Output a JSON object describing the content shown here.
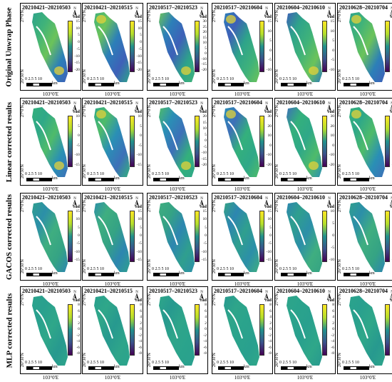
{
  "rows": [
    {
      "label": "Original Unwrap Phase",
      "palette": "orig"
    },
    {
      "label": "Linear corrected results",
      "palette": "lin"
    },
    {
      "label": "GACOS corrected results",
      "palette": "gacos"
    },
    {
      "label": "MLP corrected results",
      "palette": "mlp"
    }
  ],
  "columns": [
    "20210421–20210503",
    "20210421–20210515",
    "20210517–20210523",
    "20210517–20210604",
    "20210604–20210610",
    "20210628–20210704"
  ],
  "lat_top": "27°0'N",
  "lat_bottom": "26°30'N",
  "lon_label": "103°0'E",
  "scale_numbers": "0 2.5 5   10",
  "scale_unit": "km",
  "unit": "rad",
  "north_symbol": "N",
  "colorbar_ticks": [
    [
      [
        "15",
        "10",
        "5",
        "0",
        "-5",
        "-10",
        "-15",
        "-20"
      ],
      [
        "15",
        "10",
        "5",
        "0",
        "-5",
        "-10",
        "-15",
        "-20"
      ],
      [
        "30",
        "25",
        "20",
        "15",
        "10",
        "5",
        "0",
        "-10",
        "-15",
        "-20"
      ],
      [
        "15",
        "10",
        "5",
        "0",
        "-5",
        "-10"
      ],
      [
        "15",
        "10",
        "5",
        "0",
        "-5",
        "-10"
      ],
      [
        "15",
        "10",
        "5",
        "0",
        "-5",
        "-10"
      ]
    ],
    [
      [
        "10",
        "5",
        "0",
        "-5",
        "-10",
        "-15"
      ],
      [
        "10",
        "5",
        "0",
        "-5",
        "-10",
        "-15"
      ],
      [
        "20",
        "15",
        "10",
        "5",
        "0",
        "-5",
        "-10",
        "-15",
        "-20"
      ],
      [
        "30",
        "20",
        "10",
        "0",
        "-10",
        "-20"
      ],
      [
        "30",
        "20",
        "10",
        "0",
        "-10",
        "-20"
      ],
      [
        "10",
        "5",
        "0",
        "-5",
        "-10"
      ]
    ],
    [
      [
        "15",
        "10",
        "5",
        "0",
        "-5",
        "-10",
        "-15"
      ],
      [
        "15",
        "10",
        "5",
        "0",
        "-5",
        "-10",
        "-15"
      ],
      [
        "15",
        "10",
        "5",
        "0",
        "-5",
        "-10",
        "-15"
      ],
      [
        "15",
        "10",
        "5",
        "0",
        "-5",
        "-10",
        "-15"
      ],
      [
        "10",
        "5",
        "0",
        "-5",
        "-10"
      ],
      [
        "10",
        "5",
        "0",
        "-5",
        "-10"
      ]
    ],
    [
      [
        "8",
        "6",
        "4",
        "2",
        "0",
        "-2",
        "-4",
        "-6",
        "-8"
      ],
      [
        "8",
        "6",
        "4",
        "2",
        "0",
        "-2",
        "-4",
        "-6",
        "-8"
      ],
      [
        "8",
        "6",
        "4",
        "2",
        "0",
        "-2",
        "-4",
        "-6",
        "-8"
      ],
      [
        "8",
        "6",
        "4",
        "2",
        "0",
        "-2",
        "-4",
        "-6",
        "-8"
      ],
      [
        "8",
        "6",
        "4",
        "2",
        "0",
        "-2",
        "-4",
        "-6",
        "-8"
      ],
      [
        "10",
        "8",
        "6",
        "4",
        "2",
        "0",
        "-2",
        "-4",
        "-6",
        "-8"
      ]
    ]
  ],
  "colors": {
    "viridis_top": "#fde725",
    "viridis_mid": "#21918c",
    "viridis_bottom": "#440154",
    "map_green": "#36b87a",
    "map_teal": "#2a9d8f",
    "map_blue": "#2c6fbb",
    "map_yellow": "#e3d23a"
  }
}
